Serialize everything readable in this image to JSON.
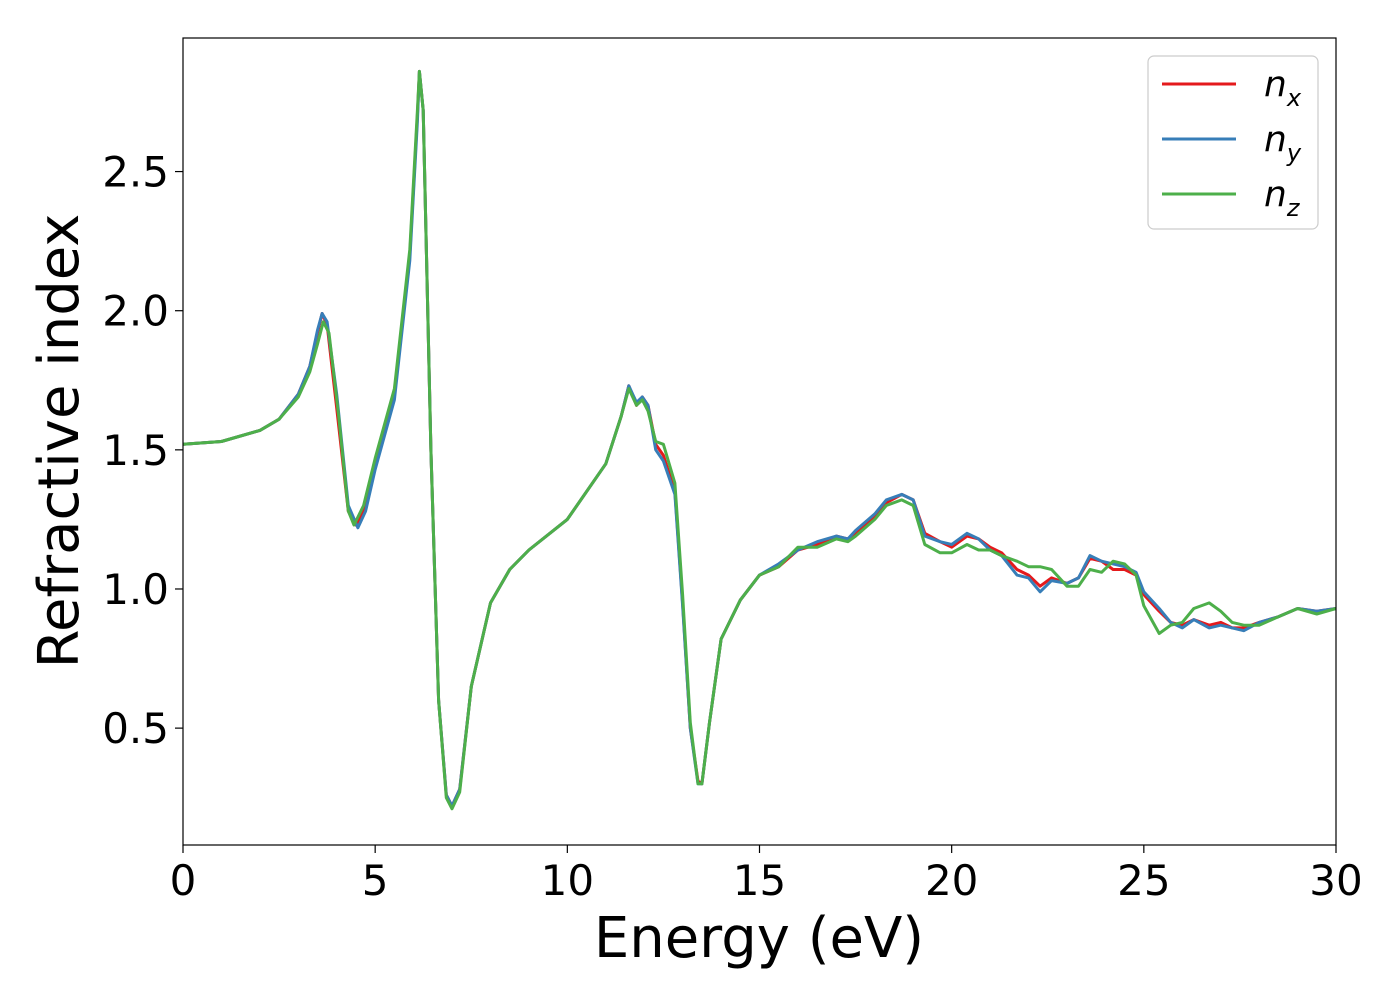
{
  "chart_data": {
    "type": "line",
    "xlabel": "Energy (eV)",
    "ylabel": "Refractive index",
    "xlim": [
      0,
      30
    ],
    "ylim": [
      0.08,
      2.98
    ],
    "xticks": [
      "0",
      "5",
      "10",
      "15",
      "20",
      "25",
      "30"
    ],
    "yticks": [
      "0.5",
      "1.0",
      "1.5",
      "2.0",
      "2.5"
    ],
    "grid": false,
    "legend_placement": "top-right",
    "series": [
      {
        "name": "n",
        "sub": "x",
        "color": "#e41a1c",
        "points": [
          [
            0,
            1.52
          ],
          [
            1,
            1.53
          ],
          [
            2,
            1.57
          ],
          [
            2.5,
            1.61
          ],
          [
            3,
            1.7
          ],
          [
            3.3,
            1.8
          ],
          [
            3.5,
            1.92
          ],
          [
            3.62,
            1.99
          ],
          [
            3.75,
            1.95
          ],
          [
            4.0,
            1.65
          ],
          [
            4.3,
            1.28
          ],
          [
            4.5,
            1.23
          ],
          [
            4.7,
            1.28
          ],
          [
            5,
            1.45
          ],
          [
            5.5,
            1.7
          ],
          [
            5.9,
            2.2
          ],
          [
            6.1,
            2.7
          ],
          [
            6.15,
            2.86
          ],
          [
            6.25,
            2.72
          ],
          [
            6.45,
            1.5
          ],
          [
            6.65,
            0.6
          ],
          [
            6.85,
            0.26
          ],
          [
            7.0,
            0.22
          ],
          [
            7.2,
            0.28
          ],
          [
            7.5,
            0.65
          ],
          [
            8,
            0.95
          ],
          [
            8.5,
            1.07
          ],
          [
            9,
            1.14
          ],
          [
            10,
            1.25
          ],
          [
            11,
            1.45
          ],
          [
            11.4,
            1.62
          ],
          [
            11.6,
            1.73
          ],
          [
            11.8,
            1.66
          ],
          [
            11.95,
            1.69
          ],
          [
            12.1,
            1.66
          ],
          [
            12.3,
            1.52
          ],
          [
            12.5,
            1.48
          ],
          [
            12.8,
            1.35
          ],
          [
            13.0,
            0.95
          ],
          [
            13.2,
            0.5
          ],
          [
            13.4,
            0.31
          ],
          [
            13.5,
            0.3
          ],
          [
            13.7,
            0.52
          ],
          [
            14,
            0.82
          ],
          [
            14.5,
            0.96
          ],
          [
            15,
            1.05
          ],
          [
            15.5,
            1.08
          ],
          [
            16,
            1.14
          ],
          [
            16.5,
            1.16
          ],
          [
            17,
            1.19
          ],
          [
            17.3,
            1.18
          ],
          [
            17.5,
            1.2
          ],
          [
            18,
            1.26
          ],
          [
            18.3,
            1.31
          ],
          [
            18.7,
            1.34
          ],
          [
            19.0,
            1.32
          ],
          [
            19.3,
            1.2
          ],
          [
            19.7,
            1.17
          ],
          [
            20,
            1.15
          ],
          [
            20.4,
            1.19
          ],
          [
            20.7,
            1.18
          ],
          [
            21,
            1.15
          ],
          [
            21.3,
            1.13
          ],
          [
            21.7,
            1.07
          ],
          [
            22,
            1.05
          ],
          [
            22.3,
            1.01
          ],
          [
            22.6,
            1.04
          ],
          [
            23,
            1.02
          ],
          [
            23.3,
            1.04
          ],
          [
            23.6,
            1.11
          ],
          [
            23.9,
            1.1
          ],
          [
            24.2,
            1.07
          ],
          [
            24.5,
            1.07
          ],
          [
            24.8,
            1.05
          ],
          [
            25.0,
            0.98
          ],
          [
            25.4,
            0.92
          ],
          [
            25.7,
            0.88
          ],
          [
            26.0,
            0.87
          ],
          [
            26.3,
            0.89
          ],
          [
            26.7,
            0.87
          ],
          [
            27,
            0.88
          ],
          [
            27.3,
            0.86
          ],
          [
            27.6,
            0.86
          ],
          [
            28,
            0.88
          ],
          [
            28.5,
            0.9
          ],
          [
            29,
            0.93
          ],
          [
            29.5,
            0.92
          ],
          [
            30,
            0.93
          ]
        ]
      },
      {
        "name": "n",
        "sub": "y",
        "color": "#377eb8",
        "points": [
          [
            0,
            1.52
          ],
          [
            1,
            1.53
          ],
          [
            2,
            1.57
          ],
          [
            2.5,
            1.61
          ],
          [
            3,
            1.7
          ],
          [
            3.3,
            1.8
          ],
          [
            3.5,
            1.93
          ],
          [
            3.62,
            1.99
          ],
          [
            3.75,
            1.96
          ],
          [
            4.0,
            1.7
          ],
          [
            4.3,
            1.3
          ],
          [
            4.55,
            1.22
          ],
          [
            4.75,
            1.28
          ],
          [
            5,
            1.43
          ],
          [
            5.5,
            1.68
          ],
          [
            5.9,
            2.18
          ],
          [
            6.1,
            2.68
          ],
          [
            6.15,
            2.86
          ],
          [
            6.25,
            2.72
          ],
          [
            6.45,
            1.5
          ],
          [
            6.65,
            0.6
          ],
          [
            6.85,
            0.26
          ],
          [
            7.0,
            0.22
          ],
          [
            7.2,
            0.28
          ],
          [
            7.5,
            0.65
          ],
          [
            8,
            0.95
          ],
          [
            8.5,
            1.07
          ],
          [
            9,
            1.14
          ],
          [
            10,
            1.25
          ],
          [
            11,
            1.45
          ],
          [
            11.4,
            1.62
          ],
          [
            11.6,
            1.73
          ],
          [
            11.8,
            1.67
          ],
          [
            11.95,
            1.69
          ],
          [
            12.1,
            1.66
          ],
          [
            12.3,
            1.5
          ],
          [
            12.5,
            1.46
          ],
          [
            12.8,
            1.34
          ],
          [
            13.0,
            0.94
          ],
          [
            13.2,
            0.5
          ],
          [
            13.4,
            0.3
          ],
          [
            13.5,
            0.3
          ],
          [
            13.7,
            0.52
          ],
          [
            14,
            0.82
          ],
          [
            14.5,
            0.96
          ],
          [
            15,
            1.05
          ],
          [
            15.5,
            1.09
          ],
          [
            16,
            1.14
          ],
          [
            16.5,
            1.17
          ],
          [
            17,
            1.19
          ],
          [
            17.3,
            1.18
          ],
          [
            17.5,
            1.21
          ],
          [
            18,
            1.27
          ],
          [
            18.3,
            1.32
          ],
          [
            18.7,
            1.34
          ],
          [
            19.0,
            1.32
          ],
          [
            19.3,
            1.19
          ],
          [
            19.7,
            1.17
          ],
          [
            20,
            1.16
          ],
          [
            20.4,
            1.2
          ],
          [
            20.7,
            1.18
          ],
          [
            21,
            1.14
          ],
          [
            21.3,
            1.12
          ],
          [
            21.7,
            1.05
          ],
          [
            22,
            1.04
          ],
          [
            22.3,
            0.99
          ],
          [
            22.6,
            1.03
          ],
          [
            23,
            1.02
          ],
          [
            23.3,
            1.04
          ],
          [
            23.6,
            1.12
          ],
          [
            23.9,
            1.1
          ],
          [
            24.2,
            1.09
          ],
          [
            24.5,
            1.08
          ],
          [
            24.8,
            1.06
          ],
          [
            25.0,
            0.99
          ],
          [
            25.4,
            0.93
          ],
          [
            25.7,
            0.88
          ],
          [
            26.0,
            0.86
          ],
          [
            26.3,
            0.89
          ],
          [
            26.7,
            0.86
          ],
          [
            27,
            0.87
          ],
          [
            27.3,
            0.86
          ],
          [
            27.6,
            0.85
          ],
          [
            28,
            0.88
          ],
          [
            28.5,
            0.9
          ],
          [
            29,
            0.93
          ],
          [
            29.5,
            0.92
          ],
          [
            30,
            0.93
          ]
        ]
      },
      {
        "name": "n",
        "sub": "z",
        "color": "#4daf4a",
        "points": [
          [
            0,
            1.52
          ],
          [
            1,
            1.53
          ],
          [
            2,
            1.57
          ],
          [
            2.5,
            1.61
          ],
          [
            3,
            1.69
          ],
          [
            3.3,
            1.78
          ],
          [
            3.5,
            1.88
          ],
          [
            3.65,
            1.96
          ],
          [
            3.8,
            1.92
          ],
          [
            4.05,
            1.62
          ],
          [
            4.3,
            1.28
          ],
          [
            4.45,
            1.23
          ],
          [
            4.7,
            1.3
          ],
          [
            5,
            1.47
          ],
          [
            5.5,
            1.72
          ],
          [
            5.9,
            2.22
          ],
          [
            6.1,
            2.72
          ],
          [
            6.15,
            2.86
          ],
          [
            6.25,
            2.72
          ],
          [
            6.45,
            1.5
          ],
          [
            6.65,
            0.6
          ],
          [
            6.85,
            0.25
          ],
          [
            7.0,
            0.21
          ],
          [
            7.2,
            0.27
          ],
          [
            7.5,
            0.65
          ],
          [
            8,
            0.95
          ],
          [
            8.5,
            1.07
          ],
          [
            9,
            1.14
          ],
          [
            10,
            1.25
          ],
          [
            11,
            1.45
          ],
          [
            11.4,
            1.62
          ],
          [
            11.6,
            1.72
          ],
          [
            11.8,
            1.66
          ],
          [
            11.95,
            1.68
          ],
          [
            12.1,
            1.64
          ],
          [
            12.3,
            1.53
          ],
          [
            12.5,
            1.52
          ],
          [
            12.8,
            1.38
          ],
          [
            13.0,
            0.98
          ],
          [
            13.2,
            0.52
          ],
          [
            13.4,
            0.3
          ],
          [
            13.5,
            0.3
          ],
          [
            13.7,
            0.52
          ],
          [
            14,
            0.82
          ],
          [
            14.5,
            0.96
          ],
          [
            15,
            1.05
          ],
          [
            15.5,
            1.08
          ],
          [
            16,
            1.15
          ],
          [
            16.5,
            1.15
          ],
          [
            17,
            1.18
          ],
          [
            17.3,
            1.17
          ],
          [
            17.5,
            1.19
          ],
          [
            18,
            1.25
          ],
          [
            18.3,
            1.3
          ],
          [
            18.7,
            1.32
          ],
          [
            19.0,
            1.3
          ],
          [
            19.3,
            1.16
          ],
          [
            19.7,
            1.13
          ],
          [
            20,
            1.13
          ],
          [
            20.4,
            1.16
          ],
          [
            20.7,
            1.14
          ],
          [
            21,
            1.14
          ],
          [
            21.3,
            1.12
          ],
          [
            21.7,
            1.1
          ],
          [
            22,
            1.08
          ],
          [
            22.3,
            1.08
          ],
          [
            22.6,
            1.07
          ],
          [
            23,
            1.01
          ],
          [
            23.3,
            1.01
          ],
          [
            23.6,
            1.07
          ],
          [
            23.9,
            1.06
          ],
          [
            24.2,
            1.1
          ],
          [
            24.5,
            1.09
          ],
          [
            24.8,
            1.05
          ],
          [
            25.0,
            0.94
          ],
          [
            25.4,
            0.84
          ],
          [
            25.7,
            0.87
          ],
          [
            26.0,
            0.88
          ],
          [
            26.3,
            0.93
          ],
          [
            26.7,
            0.95
          ],
          [
            27,
            0.92
          ],
          [
            27.3,
            0.88
          ],
          [
            27.6,
            0.87
          ],
          [
            28,
            0.87
          ],
          [
            28.5,
            0.9
          ],
          [
            29,
            0.93
          ],
          [
            29.5,
            0.91
          ],
          [
            30,
            0.93
          ]
        ]
      }
    ]
  }
}
